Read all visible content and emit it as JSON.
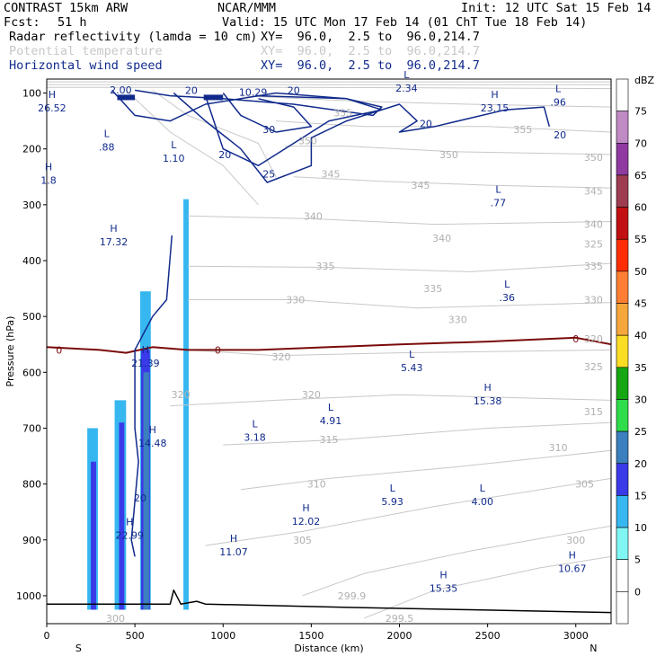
{
  "header": {
    "model": "CONTRAST 15km ARW",
    "center": "NCAR/MMM",
    "init": "Init: 12 UTC Sat 15 Feb 14",
    "fcst_label": "Fcst:",
    "fcst_value": "51 h",
    "valid": "Valid: 15 UTC Mon 17 Feb 14 (01 ChT Tue 18 Feb 14)",
    "fields": [
      {
        "name": "Radar reflectivity (lamda = 10 cm)",
        "xy": "XY=  96.0,  2.5 to  96.0,214.7",
        "color": "#000000"
      },
      {
        "name": "Potential temperature",
        "xy": "XY=  96.0,  2.5 to  96.0,214.7",
        "color": "#c8c8c8"
      },
      {
        "name": "Horizontal wind speed",
        "xy": "XY=  96.0,  2.5 to  96.0,214.7",
        "color": "#102a8c"
      }
    ]
  },
  "chart_data": {
    "type": "cross-section",
    "xlabel": "Distance (km)",
    "ylabel": "Pressure (hPa)",
    "xlim": [
      0,
      3200
    ],
    "ylim": [
      1050,
      75
    ],
    "x_ticks": [
      "0",
      "500",
      "1000",
      "1500",
      "2000",
      "2500",
      "3000"
    ],
    "y_ticks": [
      "100",
      "200",
      "300",
      "400",
      "500",
      "600",
      "700",
      "800",
      "900",
      "1000"
    ],
    "x_end_labels": {
      "left": "S",
      "right": "N"
    },
    "colorbar": {
      "unit": "dBZ",
      "levels": [
        "0",
        "5",
        "10",
        "15",
        "20",
        "25",
        "30",
        "35",
        "40",
        "45",
        "50",
        "55",
        "60",
        "65",
        "70",
        "75"
      ],
      "colors": [
        "#ffffff",
        "#ffffff",
        "#80f6f4",
        "#37b7f0",
        "#3a3ae8",
        "#3c7fbe",
        "#2fdc4b",
        "#17a614",
        "#fbdd26",
        "#f6a73b",
        "#fe7f33",
        "#ff2d03",
        "#c10f12",
        "#9e3d51",
        "#8f3aa1",
        "#c08ac5",
        "#ffffff"
      ]
    },
    "wind_lh_labels": [
      {
        "t": "H",
        "v": "26.52",
        "x": 30,
        "p": 115
      },
      {
        "t": "L",
        "v": ".88",
        "x": 340,
        "p": 185
      },
      {
        "t": "L",
        "v": "1.10",
        "x": 720,
        "p": 205
      },
      {
        "t": "H",
        "v": "1.8",
        "x": 10,
        "p": 245
      },
      {
        "t": "H",
        "v": "17.32",
        "x": 380,
        "p": 355
      },
      {
        "t": "H",
        "v": "21.39",
        "x": 560,
        "p": 572
      },
      {
        "t": "L",
        "v": "4.91",
        "x": 1610,
        "p": 675
      },
      {
        "t": "H",
        "v": "14.48",
        "x": 600,
        "p": 715
      },
      {
        "t": "L",
        "v": "3.18",
        "x": 1180,
        "p": 705
      },
      {
        "t": "L",
        "v": "5.43",
        "x": 2070,
        "p": 580
      },
      {
        "t": "H",
        "v": "15.38",
        "x": 2500,
        "p": 640
      },
      {
        "t": "L",
        "v": ".77",
        "x": 2560,
        "p": 285
      },
      {
        "t": "L",
        "v": ".36",
        "x": 2610,
        "p": 455
      },
      {
        "t": "H",
        "v": "23.15",
        "x": 2540,
        "p": 115
      },
      {
        "t": "L",
        "v": ".96",
        "x": 2900,
        "p": 105
      },
      {
        "t": "L",
        "v": "2.34",
        "x": 2040,
        "p": 80
      },
      {
        "t": "H",
        "v": "22.99",
        "x": 470,
        "p": 880
      },
      {
        "t": "L",
        "v": "5.93",
        "x": 1960,
        "p": 820
      },
      {
        "t": "L",
        "v": "4.00",
        "x": 2470,
        "p": 820
      },
      {
        "t": "H",
        "v": "12.02",
        "x": 1470,
        "p": 855
      },
      {
        "t": "H",
        "v": "11.07",
        "x": 1060,
        "p": 910
      },
      {
        "t": "H",
        "v": "15.35",
        "x": 2250,
        "p": 975
      },
      {
        "t": "H",
        "v": "10.67",
        "x": 2980,
        "p": 940
      }
    ],
    "wind_top_values": [
      "2.00",
      "10.29"
    ],
    "wind_contour_labels": [
      "20",
      "20",
      "30",
      "20",
      "25",
      "20",
      "20",
      "20"
    ],
    "theta_contour_labels": [
      {
        "v": "355",
        "x": 2700,
        "p": 165
      },
      {
        "v": "350",
        "x": 2280,
        "p": 210
      },
      {
        "v": "345",
        "x": 2120,
        "p": 265
      },
      {
        "v": "340",
        "x": 2240,
        "p": 360
      },
      {
        "v": "335",
        "x": 2190,
        "p": 450
      },
      {
        "v": "330",
        "x": 2330,
        "p": 505
      },
      {
        "v": "325",
        "x": 3100,
        "p": 590
      },
      {
        "v": "320",
        "x": 760,
        "p": 640
      },
      {
        "v": "320",
        "x": 1500,
        "p": 640
      },
      {
        "v": "315",
        "x": 1600,
        "p": 720
      },
      {
        "v": "310",
        "x": 1530,
        "p": 800
      },
      {
        "v": "305",
        "x": 1450,
        "p": 900
      },
      {
        "v": "300",
        "x": 3000,
        "p": 900
      },
      {
        "v": "299.9",
        "x": 1730,
        "p": 1000
      },
      {
        "v": "299.5",
        "x": 2000,
        "p": 1040
      },
      {
        "v": "300",
        "x": 390,
        "p": 1040
      },
      {
        "v": "355",
        "x": 1680,
        "p": 135
      },
      {
        "v": "350",
        "x": 1480,
        "p": 185
      },
      {
        "v": "345",
        "x": 1610,
        "p": 245
      },
      {
        "v": "340",
        "x": 1510,
        "p": 320
      },
      {
        "v": "335",
        "x": 1580,
        "p": 410
      },
      {
        "v": "330",
        "x": 1410,
        "p": 470
      },
      {
        "v": "320",
        "x": 1330,
        "p": 572
      },
      {
        "v": "325",
        "x": 3100,
        "p": 370
      },
      {
        "v": "330",
        "x": 3100,
        "p": 470
      },
      {
        "v": "335",
        "x": 3100,
        "p": 410
      },
      {
        "v": "340",
        "x": 3100,
        "p": 335
      },
      {
        "v": "345",
        "x": 3100,
        "p": 275
      },
      {
        "v": "350",
        "x": 3100,
        "p": 215
      },
      {
        "v": "315",
        "x": 3100,
        "p": 670
      },
      {
        "v": "310",
        "x": 2900,
        "p": 735
      },
      {
        "v": "305",
        "x": 3050,
        "p": 800
      },
      {
        "v": "320",
        "x": 3100,
        "p": 540
      }
    ],
    "zero_contour_labels": [
      "0",
      "0",
      "0"
    ],
    "reflectivity_columns": [
      {
        "x0": 230,
        "x1": 290,
        "p_top": 700,
        "dbz": 10
      },
      {
        "x0": 250,
        "x1": 280,
        "p_top": 760,
        "dbz": 15
      },
      {
        "x0": 385,
        "x1": 450,
        "p_top": 650,
        "dbz": 10
      },
      {
        "x0": 410,
        "x1": 440,
        "p_top": 690,
        "dbz": 15
      },
      {
        "x0": 530,
        "x1": 590,
        "p_top": 455,
        "dbz": 10
      },
      {
        "x0": 535,
        "x1": 585,
        "p_top": 560,
        "dbz": 15
      },
      {
        "x0": 548,
        "x1": 580,
        "p_top": 600,
        "dbz": 20
      },
      {
        "x0": 775,
        "x1": 805,
        "p_top": 290,
        "dbz": 10
      }
    ]
  }
}
